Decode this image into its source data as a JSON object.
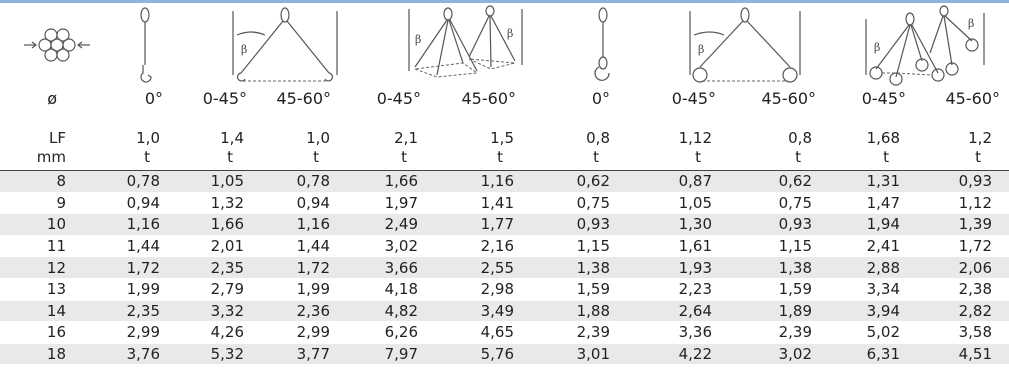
{
  "header": {
    "diameter_symbol": "ø",
    "angles": [
      "0°",
      "0-45°",
      "45-60°",
      "0-45°",
      "45-60°",
      "0°",
      "0-45°",
      "45-60°",
      "0-45°",
      "45-60°"
    ],
    "load_factor_label": "LF",
    "load_factors": [
      "1,0",
      "1,4",
      "1,0",
      "2,1",
      "1,5",
      "0,8",
      "1,12",
      "0,8",
      "1,68",
      "1,2"
    ],
    "diameter_unit": "mm",
    "load_unit": "t",
    "beta_symbol": "β"
  },
  "icons": {
    "rope_section": "wire-rope-cross-section-icon",
    "single_leg_hook": "single-leg-hook-sling-icon",
    "two_leg_hook": "two-leg-hook-sling-icon",
    "multi_leg_hook": "three-four-leg-hook-sling-icon",
    "single_leg_eye": "single-leg-eye-hook-sling-icon",
    "two_leg_eye": "two-leg-eye-hook-sling-icon",
    "multi_leg_eye": "three-four-leg-eye-hook-sling-icon"
  },
  "rows": [
    {
      "d": "8",
      "v": [
        "0,78",
        "1,05",
        "0,78",
        "1,66",
        "1,16",
        "0,62",
        "0,87",
        "0,62",
        "1,31",
        "0,93"
      ]
    },
    {
      "d": "9",
      "v": [
        "0,94",
        "1,32",
        "0,94",
        "1,97",
        "1,41",
        "0,75",
        "1,05",
        "0,75",
        "1,47",
        "1,12"
      ]
    },
    {
      "d": "10",
      "v": [
        "1,16",
        "1,66",
        "1,16",
        "2,49",
        "1,77",
        "0,93",
        "1,30",
        "0,93",
        "1,94",
        "1,39"
      ]
    },
    {
      "d": "11",
      "v": [
        "1,44",
        "2,01",
        "1,44",
        "3,02",
        "2,16",
        "1,15",
        "1,61",
        "1,15",
        "2,41",
        "1,72"
      ]
    },
    {
      "d": "12",
      "v": [
        "1,72",
        "2,35",
        "1,72",
        "3,66",
        "2,55",
        "1,38",
        "1,93",
        "1,38",
        "2,88",
        "2,06"
      ]
    },
    {
      "d": "13",
      "v": [
        "1,99",
        "2,79",
        "1,99",
        "4,18",
        "2,98",
        "1,59",
        "2,23",
        "1,59",
        "3,34",
        "2,38"
      ]
    },
    {
      "d": "14",
      "v": [
        "2,35",
        "3,32",
        "2,36",
        "4,82",
        "3,49",
        "1,88",
        "2,64",
        "1,89",
        "3,94",
        "2,82"
      ]
    },
    {
      "d": "16",
      "v": [
        "2,99",
        "4,26",
        "2,99",
        "6,26",
        "4,65",
        "2,39",
        "3,36",
        "2,39",
        "5,02",
        "3,58"
      ]
    },
    {
      "d": "18",
      "v": [
        "3,76",
        "5,32",
        "3,77",
        "7,97",
        "5,76",
        "3,01",
        "4,22",
        "3,02",
        "6,31",
        "4,51"
      ]
    }
  ]
}
